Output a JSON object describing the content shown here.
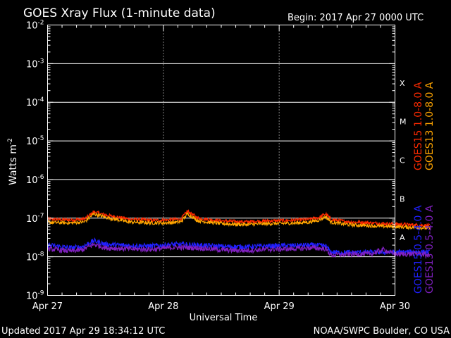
{
  "chart_data": {
    "type": "line",
    "title": "GOES Xray Flux (1-minute data)",
    "begin_label": "Begin:  2017 Apr 27 0000 UTC",
    "xlabel": "Universal Time",
    "ylabel_base": "Watts m",
    "ylabel_exp": "-2",
    "footer_left": "Updated 2017 Apr 29 18:34:12 UTC",
    "footer_right": "NOAA/SWPC Boulder, CO USA",
    "x_ticks": [
      "Apr 27",
      "Apr 28",
      "Apr 29",
      "Apr 30"
    ],
    "x_range_days": [
      0,
      3
    ],
    "y_scale": "log",
    "y_range": [
      1e-09,
      0.01
    ],
    "y_ticks": [
      {
        "base": "10",
        "exp": "-2"
      },
      {
        "base": "10",
        "exp": "-3"
      },
      {
        "base": "10",
        "exp": "-4"
      },
      {
        "base": "10",
        "exp": "-5"
      },
      {
        "base": "10",
        "exp": "-6"
      },
      {
        "base": "10",
        "exp": "-7"
      },
      {
        "base": "10",
        "exp": "-8"
      },
      {
        "base": "10",
        "exp": "-9"
      }
    ],
    "flare_classes": [
      {
        "label": "X",
        "band": [
          0.0001,
          0.001
        ]
      },
      {
        "label": "M",
        "band": [
          1e-05,
          0.0001
        ]
      },
      {
        "label": "C",
        "band": [
          1e-06,
          1e-05
        ]
      },
      {
        "label": "B",
        "band": [
          1e-07,
          1e-06
        ]
      },
      {
        "label": "A",
        "band": [
          1e-08,
          1e-07
        ]
      }
    ],
    "series": [
      {
        "name": "GOES15 1.0-8.0 A",
        "color": "#ff2a00",
        "points": [
          [
            0.0,
            9.5e-08
          ],
          [
            0.2,
            9e-08
          ],
          [
            0.32,
            9.5e-08
          ],
          [
            0.4,
            1.45e-07
          ],
          [
            0.5,
            1.2e-07
          ],
          [
            0.7,
            9.5e-08
          ],
          [
            0.9,
            8.8e-08
          ],
          [
            1.05,
            9e-08
          ],
          [
            1.15,
            9.5e-08
          ],
          [
            1.21,
            1.5e-07
          ],
          [
            1.3,
            1e-07
          ],
          [
            1.5,
            8.5e-08
          ],
          [
            1.7,
            8e-08
          ],
          [
            1.9,
            8.5e-08
          ],
          [
            2.1,
            8.7e-08
          ],
          [
            2.25,
            9.3e-08
          ],
          [
            2.35,
            1.05e-07
          ],
          [
            2.4,
            1.3e-07
          ],
          [
            2.45,
            9.2e-08
          ],
          [
            2.6,
            8e-08
          ],
          [
            2.8,
            7.5e-08
          ],
          [
            3.0,
            7e-08
          ],
          [
            3.2,
            6.6e-08
          ],
          [
            3.3,
            6.4e-08
          ]
        ]
      },
      {
        "name": "GOES13 1.0-8.0 A",
        "color": "#ffa500",
        "points": [
          [
            0.0,
            7.8e-08
          ],
          [
            0.2,
            7.5e-08
          ],
          [
            0.32,
            8e-08
          ],
          [
            0.4,
            1.3e-07
          ],
          [
            0.5,
            1.05e-07
          ],
          [
            0.7,
            8e-08
          ],
          [
            0.9,
            7.5e-08
          ],
          [
            1.05,
            7.6e-08
          ],
          [
            1.15,
            8e-08
          ],
          [
            1.21,
            1.3e-07
          ],
          [
            1.3,
            8.5e-08
          ],
          [
            1.5,
            7.2e-08
          ],
          [
            1.7,
            6.8e-08
          ],
          [
            1.9,
            7.2e-08
          ],
          [
            2.1,
            7.4e-08
          ],
          [
            2.25,
            7.8e-08
          ],
          [
            2.35,
            9e-08
          ],
          [
            2.4,
            1.1e-07
          ],
          [
            2.45,
            7.8e-08
          ],
          [
            2.6,
            6.8e-08
          ],
          [
            2.8,
            6.3e-08
          ],
          [
            3.0,
            6e-08
          ],
          [
            3.2,
            5.7e-08
          ],
          [
            3.3,
            5.5e-08
          ]
        ]
      },
      {
        "name": "GOES15 0.5-4.0 A",
        "color": "#2020ff",
        "points": [
          [
            0.0,
            2e-08
          ],
          [
            0.2,
            1.7e-08
          ],
          [
            0.3,
            1.8e-08
          ],
          [
            0.4,
            2.6e-08
          ],
          [
            0.5,
            2.1e-08
          ],
          [
            0.7,
            1.95e-08
          ],
          [
            0.9,
            1.9e-08
          ],
          [
            1.1,
            2.1e-08
          ],
          [
            1.3,
            2e-08
          ],
          [
            1.5,
            1.85e-08
          ],
          [
            1.7,
            1.8e-08
          ],
          [
            1.9,
            1.9e-08
          ],
          [
            2.1,
            1.95e-08
          ],
          [
            2.3,
            2e-08
          ],
          [
            2.4,
            1.9e-08
          ],
          [
            2.45,
            1.3e-08
          ],
          [
            2.6,
            1.3e-08
          ],
          [
            2.8,
            1.3e-08
          ],
          [
            3.0,
            1.3e-08
          ],
          [
            3.2,
            1.35e-08
          ],
          [
            3.3,
            1.3e-08
          ]
        ]
      },
      {
        "name": "GOES13 0.5-4.0 A",
        "color": "#8020c0",
        "points": [
          [
            0.0,
            1.6e-08
          ],
          [
            0.2,
            1.4e-08
          ],
          [
            0.3,
            1.5e-08
          ],
          [
            0.4,
            2.1e-08
          ],
          [
            0.5,
            1.7e-08
          ],
          [
            0.7,
            1.6e-08
          ],
          [
            0.9,
            1.55e-08
          ],
          [
            1.1,
            1.75e-08
          ],
          [
            1.3,
            1.7e-08
          ],
          [
            1.5,
            1.5e-08
          ],
          [
            1.7,
            1.45e-08
          ],
          [
            1.9,
            1.55e-08
          ],
          [
            2.1,
            1.6e-08
          ],
          [
            2.3,
            1.7e-08
          ],
          [
            2.4,
            1.6e-08
          ],
          [
            2.45,
            1.1e-08
          ],
          [
            2.6,
            1.15e-08
          ],
          [
            2.8,
            1.2e-08
          ],
          [
            2.9,
            1.55e-08
          ],
          [
            3.0,
            1.15e-08
          ],
          [
            3.2,
            1.2e-08
          ],
          [
            3.3,
            1.1e-08
          ]
        ]
      }
    ],
    "grid": true
  }
}
